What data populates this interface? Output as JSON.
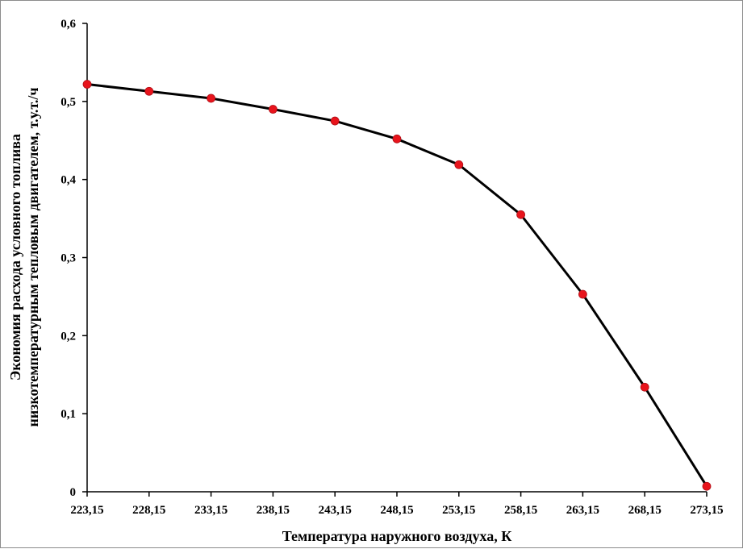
{
  "chart_data": {
    "type": "line",
    "title": "",
    "xlabel": "Температура наружного воздуха, К",
    "ylabel_line1": "Экономия расхода условного топлива",
    "ylabel_line2": "низкотемпературным тепловым двигателем, т.у.т./ч",
    "x": [
      "223,15",
      "228,15",
      "233,15",
      "238,15",
      "243,15",
      "248,15",
      "253,15",
      "258,15",
      "263,15",
      "268,15",
      "273,15"
    ],
    "values": [
      0.522,
      0.513,
      0.504,
      0.49,
      0.475,
      0.452,
      0.419,
      0.355,
      0.253,
      0.134,
      0.007
    ],
    "ylim": [
      0,
      0.6
    ],
    "yticks": [
      "0",
      "0,1",
      "0,2",
      "0,3",
      "0,4",
      "0,5",
      "0,6"
    ],
    "grid": false,
    "legend": "none",
    "line_color": "#000000",
    "marker_color": "#e8141c"
  }
}
